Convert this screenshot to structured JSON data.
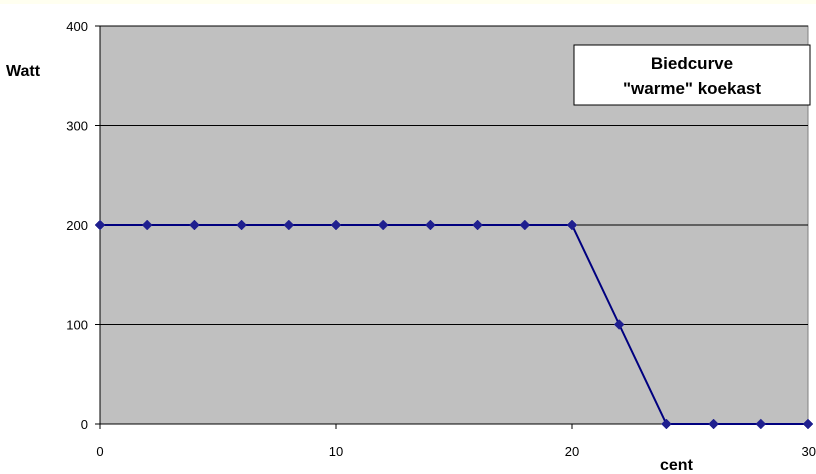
{
  "chart_data": {
    "type": "line",
    "title_lines": [
      "Biedcurve",
      "\"warme\" koekast"
    ],
    "xlabel": "cent",
    "ylabel": "Watt",
    "xlim": [
      0,
      30
    ],
    "ylim": [
      0,
      400
    ],
    "x_ticks": [
      0,
      10,
      20,
      30
    ],
    "y_ticks": [
      0,
      100,
      200,
      300,
      400
    ],
    "grid": "horizontal",
    "legend": "none",
    "series": [
      {
        "x": [
          0,
          2,
          4,
          6,
          8,
          10,
          12,
          14,
          16,
          18,
          20,
          22,
          24,
          26,
          28,
          30
        ],
        "values": [
          200,
          200,
          200,
          200,
          200,
          200,
          200,
          200,
          200,
          200,
          200,
          100,
          0,
          0,
          0,
          0
        ]
      }
    ],
    "colors": {
      "plot_background": "#c0c0c0",
      "line": "#00007f",
      "marker": "#1f1f8f",
      "top_band": "#fffff0"
    }
  }
}
